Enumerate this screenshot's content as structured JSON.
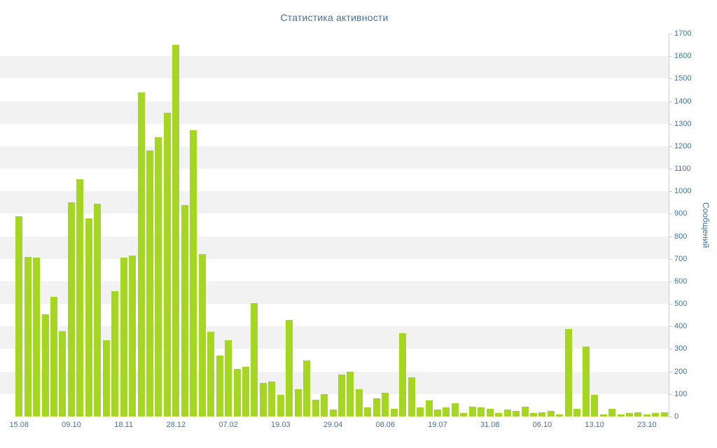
{
  "chart_data": {
    "type": "bar",
    "title": "Статистика активности",
    "xlabel": "",
    "ylabel": "Сообщений",
    "ylim": [
      0,
      1700
    ],
    "y_tick_step": 100,
    "y_tick_labels": [
      "0",
      "100",
      "200",
      "300",
      "400",
      "500",
      "600",
      "700",
      "800",
      "900",
      "1000",
      "1100",
      "1200",
      "1300",
      "1400",
      "1500",
      "1600",
      "1700"
    ],
    "x_tick_labels": [
      "15.08",
      "09.10",
      "18.11",
      "28.12",
      "07.02",
      "19.03",
      "29.04",
      "08.06",
      "19.07",
      "31.08",
      "06.10",
      "13.10",
      "23.10"
    ],
    "x_tick_every": 6,
    "values": [
      890,
      710,
      705,
      455,
      530,
      380,
      950,
      1055,
      880,
      945,
      340,
      555,
      705,
      715,
      1440,
      1180,
      1240,
      1350,
      1650,
      940,
      1270,
      720,
      375,
      270,
      340,
      210,
      220,
      505,
      150,
      155,
      95,
      430,
      120,
      250,
      75,
      100,
      30,
      185,
      200,
      120,
      40,
      80,
      105,
      35,
      370,
      175,
      40,
      70,
      30,
      40,
      60,
      15,
      45,
      40,
      35,
      15,
      30,
      25,
      45,
      15,
      20,
      25,
      10,
      390,
      35,
      310,
      95,
      10,
      35,
      10,
      15,
      20,
      10,
      15,
      20
    ],
    "legend": "none",
    "grid": "striped-horizontal-bands",
    "colors": {
      "bar": "#a4d622",
      "text": "#4572a2",
      "stripe": "#f2f2f2",
      "axis": "#c8cdd6",
      "background": "#ffffff"
    }
  }
}
